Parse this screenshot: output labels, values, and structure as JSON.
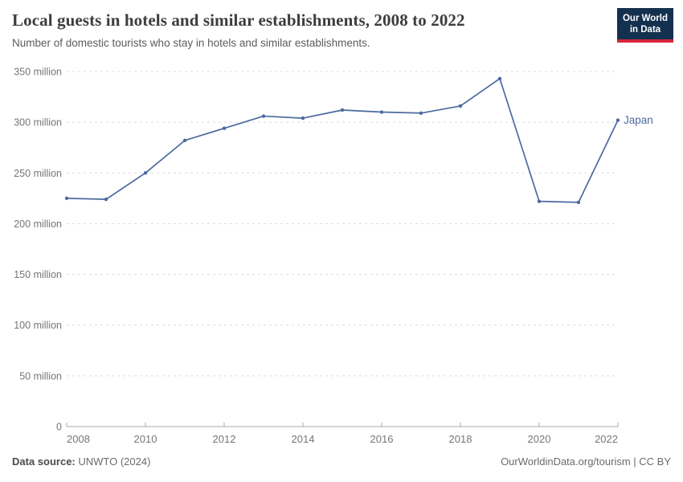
{
  "header": {
    "title": "Local guests in hotels and similar establishments, 2008 to 2022",
    "subtitle": "Number of domestic tourists who stay in hotels and similar establishments.",
    "logo": {
      "line1": "Our World",
      "line2": "in Data"
    }
  },
  "chart_data": {
    "type": "line",
    "title": "Local guests in hotels and similar establishments, 2008 to 2022",
    "unit": "million",
    "x": [
      2008,
      2009,
      2010,
      2011,
      2012,
      2013,
      2014,
      2015,
      2016,
      2017,
      2018,
      2019,
      2020,
      2021,
      2022
    ],
    "series": [
      {
        "name": "Japan",
        "color": "#4c6aa0",
        "values": [
          225,
          224,
          250,
          282,
          294,
          306,
          304,
          312,
          310,
          309,
          316,
          343,
          222,
          221,
          302
        ]
      }
    ],
    "values_unit_note": "values are millions of guests",
    "ylim": [
      0,
      350
    ],
    "yticks": [
      0,
      50,
      100,
      150,
      200,
      250,
      300,
      350
    ],
    "xticks": [
      2008,
      2010,
      2012,
      2014,
      2016,
      2018,
      2020,
      2022
    ],
    "grid": "horizontal-dashed",
    "legend": "end-of-line-label"
  },
  "footer": {
    "source_label": "Data source:",
    "source_value": "UNWTO (2024)",
    "credit": "OurWorldinData.org/tourism | CC BY"
  },
  "colors": {
    "accent": "#4c6aa0",
    "grid": "#dcdcdc",
    "axis": "#a8a8a8",
    "tick_text": "#767676",
    "logo_bg": "#14304f",
    "logo_bar": "#d7263d"
  }
}
